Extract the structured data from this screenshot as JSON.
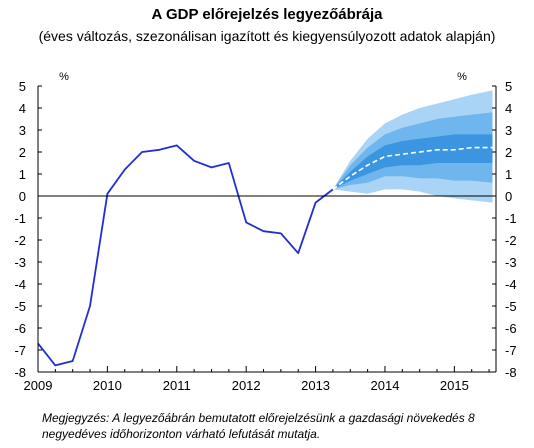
{
  "title": "A GDP előrejelzés legyezőábrája",
  "subtitle": "(éves változás, szezonálisan igazított és kiegyensúlyozott adatok alapján)",
  "note": "Megjegyzés: A legyezőábrán bemutatott előrejelzésünk a gazdasági növekedés 8 negyedéves időhorizonton várható lefutását mutatja.",
  "colors": {
    "line": "#1f2fd6",
    "median": "#ffffff",
    "band_outer": "#a9d4f5",
    "band_mid": "#6fb6ee",
    "band_inner": "#3b95e0",
    "axis": "#000000"
  },
  "chart_data": {
    "type": "line",
    "title": "A GDP előrejelzés legyezőábrája",
    "subtitle": "(éves változás, szezonálisan igazított és kiegyensúlyozott adatok alapján)",
    "ylabel_left": "%",
    "ylabel_right": "%",
    "ylim": [
      -8,
      5
    ],
    "xlim": [
      2009.0,
      2015.6
    ],
    "yticks": [
      5,
      4,
      3,
      2,
      1,
      0,
      -1,
      -2,
      -3,
      -4,
      -5,
      -6,
      -7,
      -8
    ],
    "ytick_labels": [
      "5",
      "4",
      "3",
      "2",
      "1",
      "0",
      "-1",
      "-2",
      "-3",
      "-4",
      "-5",
      "-6",
      "-7",
      "-8"
    ],
    "xticks": [
      2009,
      2010,
      2011,
      2012,
      2013,
      2014,
      2015
    ],
    "xtick_labels": [
      "2009",
      "2010",
      "2011",
      "2012",
      "2013",
      "2014",
      "2015"
    ],
    "grid": false,
    "series": [
      {
        "x": [
          2009.0,
          2009.25,
          2009.5,
          2009.75,
          2010.0,
          2010.25,
          2010.5,
          2010.75,
          2011.0,
          2011.25,
          2011.5,
          2011.75,
          2012.0,
          2012.25,
          2012.5,
          2012.75,
          2013.0,
          2013.25
        ],
        "values": [
          -6.7,
          -7.7,
          -7.5,
          -5.0,
          0.1,
          1.2,
          2.0,
          2.1,
          2.3,
          1.6,
          1.3,
          1.5,
          -1.2,
          -1.6,
          -1.7,
          -2.6,
          -0.3,
          0.3
        ]
      },
      {
        "x": [
          2013.25,
          2013.5,
          2013.75,
          2014.0,
          2014.25,
          2014.5,
          2014.75,
          2015.0,
          2015.25,
          2015.55
        ],
        "values": [
          0.3,
          0.9,
          1.4,
          1.8,
          1.9,
          2.0,
          2.1,
          2.1,
          2.2,
          2.2
        ]
      }
    ],
    "fan": {
      "x": [
        2013.25,
        2013.5,
        2013.75,
        2014.0,
        2014.25,
        2014.5,
        2014.75,
        2015.0,
        2015.25,
        2015.55
      ],
      "outer_upper": [
        0.3,
        1.6,
        2.6,
        3.3,
        3.7,
        4.0,
        4.2,
        4.4,
        4.6,
        4.8
      ],
      "outer_lower": [
        0.3,
        0.2,
        0.1,
        0.3,
        0.3,
        0.2,
        0.0,
        -0.1,
        -0.2,
        -0.3
      ],
      "mid_upper": [
        0.3,
        1.4,
        2.2,
        2.8,
        3.1,
        3.3,
        3.5,
        3.6,
        3.7,
        3.8
      ],
      "mid_lower": [
        0.3,
        0.5,
        0.6,
        0.9,
        0.9,
        0.8,
        0.8,
        0.7,
        0.7,
        0.6
      ],
      "inner_upper": [
        0.3,
        1.1,
        1.8,
        2.3,
        2.5,
        2.6,
        2.7,
        2.8,
        2.8,
        2.8
      ],
      "inner_lower": [
        0.3,
        0.7,
        1.0,
        1.3,
        1.4,
        1.4,
        1.5,
        1.5,
        1.5,
        1.5
      ]
    }
  }
}
